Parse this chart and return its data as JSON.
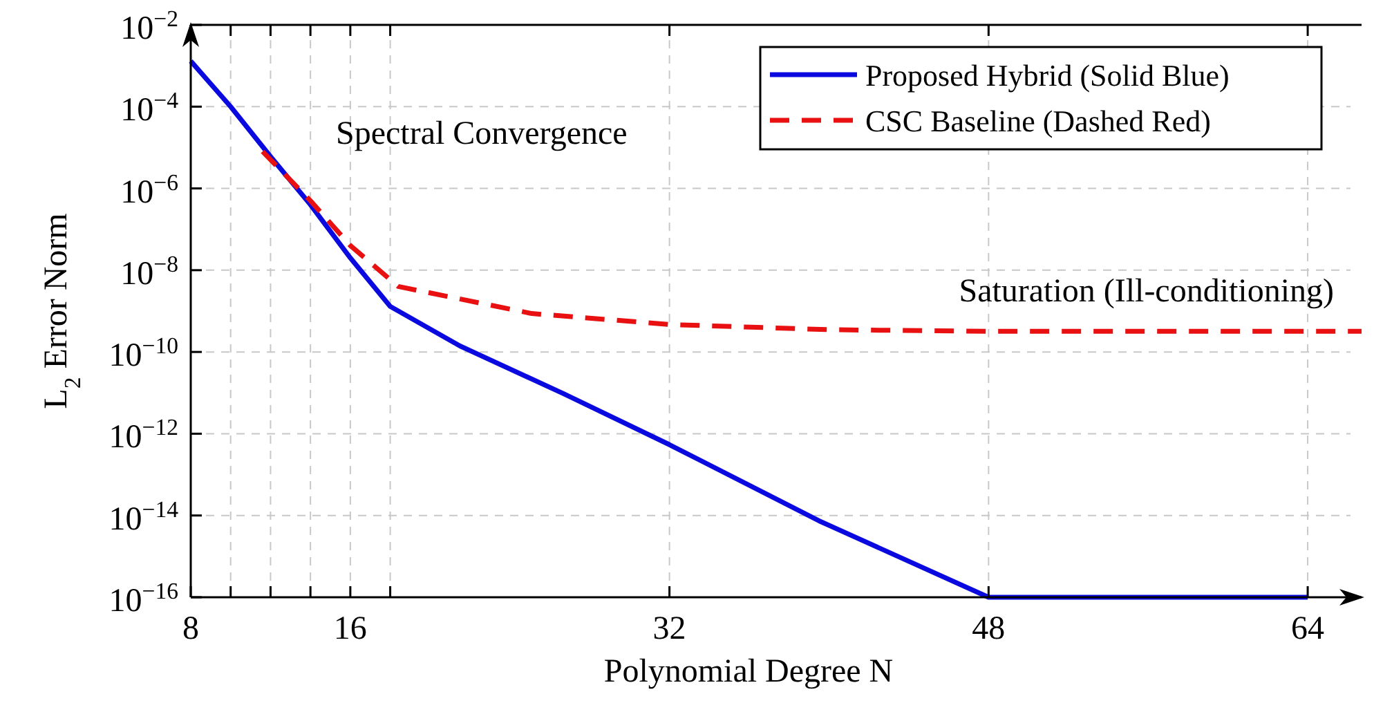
{
  "chart_data": {
    "type": "line",
    "xlabel": "Polynomial Degree N",
    "ylabel": "L$_{2}$ Error Norm",
    "log": "y",
    "grid": true,
    "legend": "top right",
    "xlim": [
      8,
      66.7
    ],
    "xticks": [
      8,
      {
        "value": 10,
        "label": null
      },
      {
        "value": 12,
        "label": null
      },
      {
        "value": 14,
        "label": null
      },
      16,
      {
        "value": 18,
        "label": null
      },
      32,
      48,
      64
    ],
    "ylim": [
      1e-16,
      0.01
    ],
    "yticks": [
      {
        "value": 0.01,
        "label": "10$^{−2}$"
      },
      {
        "value": 0.0001,
        "label": "10$^{−4}$"
      },
      {
        "value": 1e-06,
        "label": "10$^{−6}$"
      },
      {
        "value": 1e-08,
        "label": "10$^{−8}$"
      },
      {
        "value": 1e-10,
        "label": "10$^{−10}$"
      },
      {
        "value": 1e-12,
        "label": "10$^{−12}$"
      },
      {
        "value": 1e-14,
        "label": "10$^{−14}$"
      },
      {
        "value": 1e-16,
        "label": "10$^{−16}$"
      }
    ],
    "series": [
      {
        "name": "Proposed Hybrid (Solid Blue)",
        "color": "#0a0ae0",
        "line_style": "solid",
        "x": [
          8,
          10,
          12,
          14,
          16,
          18,
          21.5,
          26.7,
          32,
          39.5,
          48,
          64
        ],
        "values": [
          0.0013,
          0.0001,
          6e-06,
          4e-07,
          2e-08,
          1.3e-09,
          1.4e-10,
          9.5e-12,
          5.4e-13,
          7.4e-15,
          1e-16,
          1e-16
        ]
      },
      {
        "name": "CSC Baseline (Dashed Red)",
        "color": "#e81010",
        "line_style": "dashed",
        "x": [
          11.6,
          14,
          16,
          18.4,
          25.1,
          32,
          40,
          48,
          66.7
        ],
        "values": [
          8e-06,
          5e-07,
          4e-08,
          4e-09,
          8.7e-10,
          4.7e-10,
          3.5e-10,
          3.2e-10,
          3.2e-10
        ]
      }
    ],
    "annotations": [
      "Spectral Convergence",
      "Saturation (Ill-conditioning)"
    ]
  }
}
